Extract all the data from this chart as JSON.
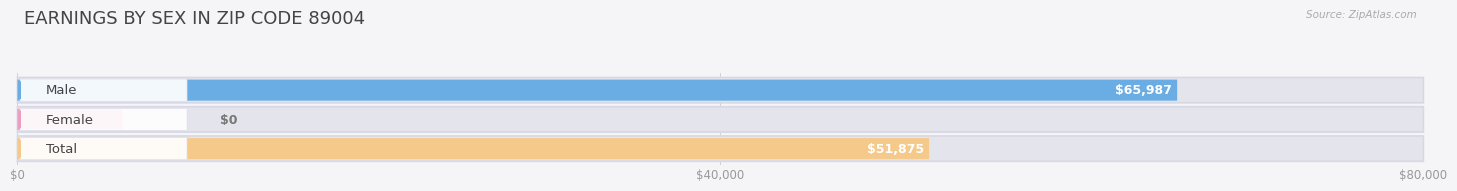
{
  "title": "EARNINGS BY SEX IN ZIP CODE 89004",
  "source": "Source: ZipAtlas.com",
  "categories": [
    "Male",
    "Female",
    "Total"
  ],
  "values": [
    65987,
    0,
    51875
  ],
  "bar_colors": [
    "#6aade4",
    "#f09cbf",
    "#f5c98a"
  ],
  "bar_track_color": "#e4e4ec",
  "value_labels": [
    "$65,987",
    "$0",
    "$51,875"
  ],
  "xlim": [
    0,
    80000
  ],
  "xticks": [
    0,
    40000,
    80000
  ],
  "xtick_labels": [
    "$0",
    "$40,000",
    "$80,000"
  ],
  "background_color": "#f5f5f8",
  "title_fontsize": 13,
  "label_fontsize": 9.5,
  "tick_fontsize": 8.5,
  "source_fontsize": 7.5
}
